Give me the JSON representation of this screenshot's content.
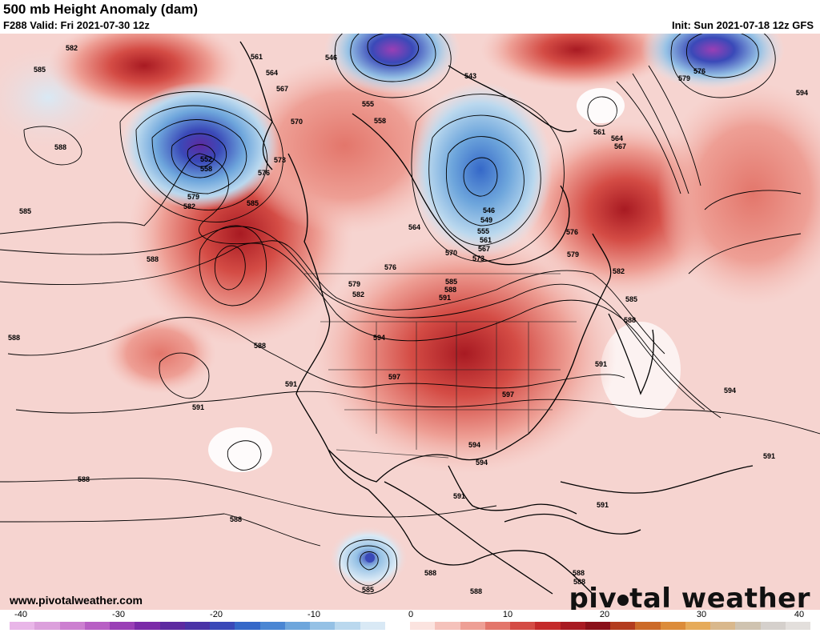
{
  "header": {
    "title": "500 mb Height Anomaly (dam)",
    "valid": "F288 Valid: Fri 2021-07-30 12z",
    "init": "Init: Sun 2021-07-18 12z GFS"
  },
  "footer": {
    "website": "www.pivotalweather.com",
    "brand_left": "piv",
    "brand_right": "tal weather"
  },
  "colorbar": {
    "labels": [
      "-40",
      "-30",
      "-20",
      "-10",
      "0",
      "10",
      "20",
      "30",
      "40"
    ],
    "colors": [
      "#e9b6e8",
      "#dca0dc",
      "#cc7fd0",
      "#b85fc4",
      "#9a3fb6",
      "#7b2aa8",
      "#5d2aa0",
      "#4a33a6",
      "#3a49b8",
      "#3568c8",
      "#4a86d3",
      "#6ea6dc",
      "#95c1e5",
      "#bad8ee",
      "#d9e9f5",
      "#ffffff",
      "#fbe3df",
      "#f5c2bb",
      "#ee9f95",
      "#e3766b",
      "#d44c45",
      "#c42a2a",
      "#a81a22",
      "#8a1019",
      "#b33c1e",
      "#cc6a28",
      "#dc8c3a",
      "#e6ab5a",
      "#d9b88c",
      "#cfc3b0",
      "#d5d0cc",
      "#e3dfdc"
    ]
  },
  "contour_labels": [
    {
      "text": "582"
    },
    {
      "text": "585"
    },
    {
      "text": "588"
    },
    {
      "text": "585"
    },
    {
      "text": "588"
    },
    {
      "text": "552"
    },
    {
      "text": "558"
    },
    {
      "text": "579"
    },
    {
      "text": "582"
    },
    {
      "text": "561"
    },
    {
      "text": "564"
    },
    {
      "text": "567"
    },
    {
      "text": "570"
    },
    {
      "text": "573"
    },
    {
      "text": "576"
    },
    {
      "text": "585"
    },
    {
      "text": "546"
    },
    {
      "text": "555"
    },
    {
      "text": "558"
    },
    {
      "text": "543"
    },
    {
      "text": "546"
    },
    {
      "text": "549"
    },
    {
      "text": "555"
    },
    {
      "text": "561"
    },
    {
      "text": "567"
    },
    {
      "text": "564"
    },
    {
      "text": "570"
    },
    {
      "text": "573"
    },
    {
      "text": "576"
    },
    {
      "text": "579"
    },
    {
      "text": "582"
    },
    {
      "text": "585"
    },
    {
      "text": "588"
    },
    {
      "text": "588"
    },
    {
      "text": "591"
    },
    {
      "text": "594"
    },
    {
      "text": "597"
    },
    {
      "text": "597"
    },
    {
      "text": "594"
    },
    {
      "text": "591"
    },
    {
      "text": "588"
    },
    {
      "text": "591"
    },
    {
      "text": "588"
    },
    {
      "text": "591"
    },
    {
      "text": "591"
    },
    {
      "text": "588"
    },
    {
      "text": "588"
    },
    {
      "text": "585"
    },
    {
      "text": "588"
    },
    {
      "text": "588"
    },
    {
      "text": "591"
    },
    {
      "text": "594"
    },
    {
      "text": "594"
    },
    {
      "text": "591"
    },
    {
      "text": "576"
    },
    {
      "text": "579"
    },
    {
      "text": "582"
    },
    {
      "text": "585"
    },
    {
      "text": "588"
    },
    {
      "text": "561"
    },
    {
      "text": "564"
    },
    {
      "text": "567"
    },
    {
      "text": "579"
    },
    {
      "text": "576"
    },
    {
      "text": "594"
    },
    {
      "text": "588"
    }
  ]
}
